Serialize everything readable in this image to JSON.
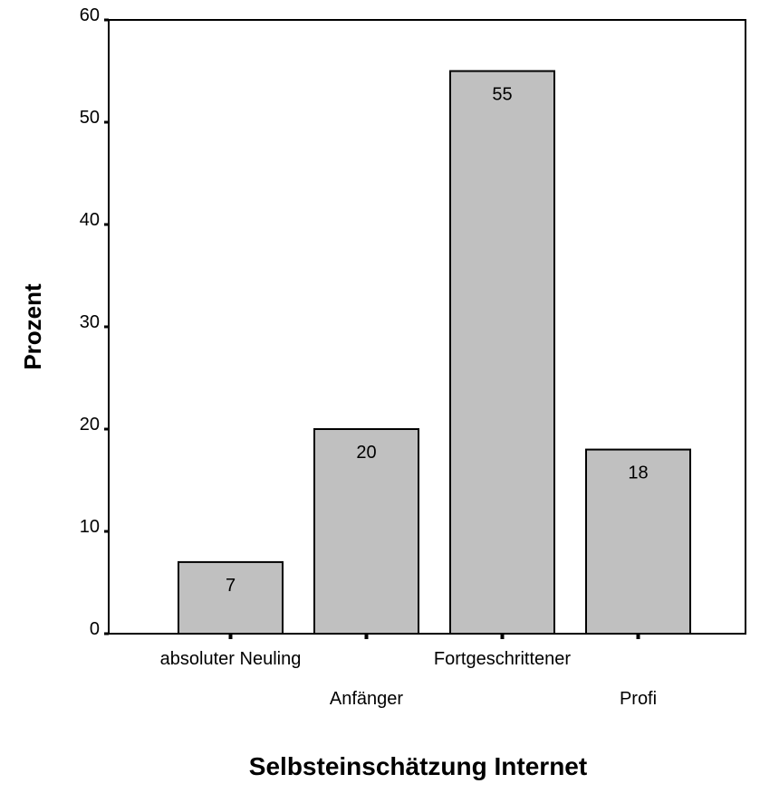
{
  "chart_data": {
    "type": "bar",
    "categories": [
      "absoluter Neuling",
      "Anfänger",
      "Fortgeschrittener",
      "Profi"
    ],
    "values": [
      7,
      20,
      55,
      18
    ],
    "data_labels": [
      "7",
      "20",
      "55",
      "18"
    ],
    "title": "",
    "xlabel": "Selbsteinschätzung Internet",
    "ylabel": "Prozent",
    "ylim": [
      0,
      60
    ],
    "yticks": [
      0,
      10,
      20,
      30,
      40,
      50,
      60
    ],
    "grid": false,
    "legend": "none",
    "colors": {
      "bar_fill": "#c0c0c0",
      "bar_stroke": "#000000",
      "axis": "#000000",
      "background": "#ffffff"
    }
  }
}
